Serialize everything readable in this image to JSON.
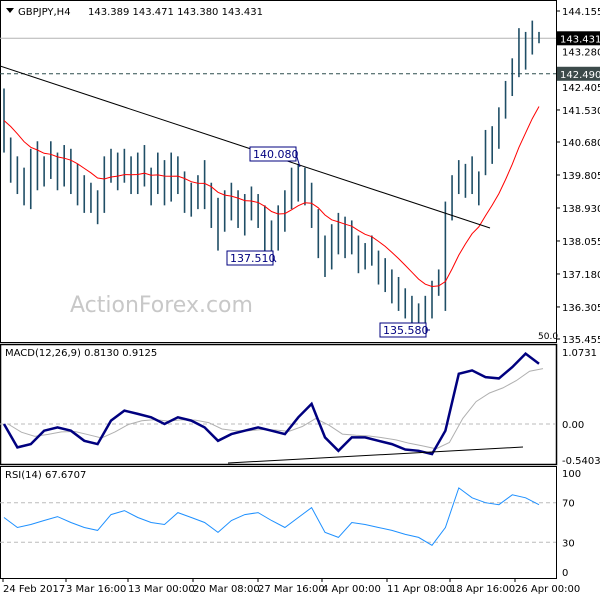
{
  "header": {
    "symbol": "GBPJPY,H4",
    "ohlc": "143.389 143.471 143.380 143.431"
  },
  "watermark": "ActionForex.com",
  "colors": {
    "bars": "#1f4e66",
    "ma": "#ff0000",
    "macd": "#00007f",
    "signal": "#b0b0b0",
    "rsi": "#1e90ff",
    "trendline": "#000000"
  },
  "chart_data": [
    {
      "type": "bar",
      "title": "GBPJPY,H4",
      "price_axis_ticks": [
        "144.155",
        "143.280",
        "142.405",
        "141.530",
        "140.680",
        "139.805",
        "138.930",
        "138.055",
        "137.180",
        "136.305",
        "135.455"
      ],
      "ylim": [
        135.455,
        144.45
      ],
      "current_price": "143.431",
      "level_line": "142.490",
      "annotations": [
        "140.080",
        "137.510",
        "135.580"
      ],
      "corner_label": "50.0",
      "high_low": [
        [
          142.1,
          140.4
        ],
        [
          140.8,
          139.6
        ],
        [
          140.3,
          139.3
        ],
        [
          140.0,
          139.0
        ],
        [
          140.5,
          138.9
        ],
        [
          140.7,
          139.4
        ],
        [
          140.3,
          139.5
        ],
        [
          140.7,
          139.7
        ],
        [
          140.4,
          139.4
        ],
        [
          140.6,
          139.5
        ],
        [
          140.5,
          139.3
        ],
        [
          140.1,
          139.0
        ],
        [
          139.8,
          138.8
        ],
        [
          139.6,
          138.8
        ],
        [
          139.4,
          138.5
        ],
        [
          140.3,
          138.8
        ],
        [
          140.5,
          139.6
        ],
        [
          140.4,
          139.4
        ],
        [
          140.5,
          139.6
        ],
        [
          140.3,
          139.3
        ],
        [
          140.4,
          139.3
        ],
        [
          140.6,
          139.5
        ],
        [
          140.0,
          139.0
        ],
        [
          140.4,
          139.3
        ],
        [
          140.2,
          139.0
        ],
        [
          140.4,
          139.1
        ],
        [
          140.3,
          139.3
        ],
        [
          139.9,
          138.8
        ],
        [
          139.6,
          138.7
        ],
        [
          139.8,
          138.9
        ],
        [
          140.2,
          138.9
        ],
        [
          139.6,
          138.4
        ],
        [
          139.2,
          137.8
        ],
        [
          139.4,
          138.3
        ],
        [
          139.6,
          138.6
        ],
        [
          139.4,
          138.4
        ],
        [
          139.3,
          138.2
        ],
        [
          139.5,
          138.6
        ],
        [
          139.3,
          138.4
        ],
        [
          139.0,
          137.8
        ],
        [
          138.6,
          137.5
        ],
        [
          139.0,
          137.8
        ],
        [
          139.4,
          138.3
        ],
        [
          140.0,
          138.9
        ],
        [
          140.1,
          139.1
        ],
        [
          140.0,
          139.0
        ],
        [
          139.6,
          138.4
        ],
        [
          138.9,
          137.6
        ],
        [
          138.2,
          137.1
        ],
        [
          138.5,
          137.3
        ],
        [
          138.8,
          137.7
        ],
        [
          138.7,
          137.6
        ],
        [
          138.6,
          137.7
        ],
        [
          138.2,
          137.2
        ],
        [
          138.0,
          137.3
        ],
        [
          138.2,
          137.4
        ],
        [
          137.8,
          136.9
        ],
        [
          137.6,
          136.7
        ],
        [
          137.3,
          136.4
        ],
        [
          137.1,
          136.2
        ],
        [
          136.8,
          136.0
        ],
        [
          136.6,
          135.8
        ],
        [
          136.4,
          135.6
        ],
        [
          136.6,
          135.7
        ],
        [
          137.0,
          136.0
        ],
        [
          137.3,
          136.6
        ],
        [
          139.1,
          136.2
        ],
        [
          139.8,
          138.6
        ],
        [
          140.2,
          139.3
        ],
        [
          140.1,
          139.2
        ],
        [
          140.3,
          139.3
        ],
        [
          139.9,
          139.0
        ],
        [
          141.0,
          139.8
        ],
        [
          141.1,
          140.1
        ],
        [
          141.6,
          140.5
        ],
        [
          142.3,
          141.3
        ],
        [
          142.9,
          141.9
        ],
        [
          143.7,
          142.4
        ],
        [
          143.6,
          142.6
        ],
        [
          143.9,
          143.0
        ],
        [
          143.6,
          143.3
        ]
      ],
      "x_tick_labels": [
        "24 Feb 2017",
        "3 Mar 16:00",
        "13 Mar 00:00",
        "20 Mar 08:00",
        "27 Mar 16:00",
        "4 Apr 00:00",
        "11 Apr 08:00",
        "18 Apr 16:00",
        "26 Apr 00:00"
      ]
    },
    {
      "type": "line",
      "title": "MACD(12,26,9) 0.8130 0.9125",
      "axis_ticks": [
        "1.0731",
        "0.00",
        "-0.5403"
      ],
      "ylim": [
        -0.5403,
        1.0731
      ],
      "macd": [
        0.0,
        -0.35,
        -0.3,
        -0.1,
        -0.05,
        -0.1,
        -0.25,
        -0.3,
        0.05,
        0.2,
        0.15,
        0.1,
        0.0,
        0.1,
        0.05,
        -0.05,
        -0.25,
        -0.15,
        -0.1,
        -0.05,
        -0.1,
        -0.15,
        0.1,
        0.3,
        -0.2,
        -0.4,
        -0.2,
        -0.2,
        -0.25,
        -0.3,
        -0.38,
        -0.4,
        -0.45,
        -0.1,
        0.75,
        0.8,
        0.7,
        0.68,
        0.85,
        1.05,
        0.9
      ]
    },
    {
      "type": "line",
      "title": "RSI(14) 67.6707",
      "axis_ticks": [
        "100",
        "70",
        "30",
        "0"
      ],
      "ylim": [
        0,
        100
      ],
      "levels": [
        70,
        30
      ],
      "values": [
        55,
        45,
        48,
        52,
        56,
        50,
        45,
        42,
        58,
        62,
        55,
        50,
        48,
        60,
        55,
        50,
        40,
        52,
        58,
        60,
        52,
        45,
        55,
        65,
        40,
        35,
        50,
        48,
        45,
        42,
        38,
        35,
        27,
        45,
        85,
        75,
        70,
        68,
        78,
        75,
        68
      ]
    }
  ]
}
